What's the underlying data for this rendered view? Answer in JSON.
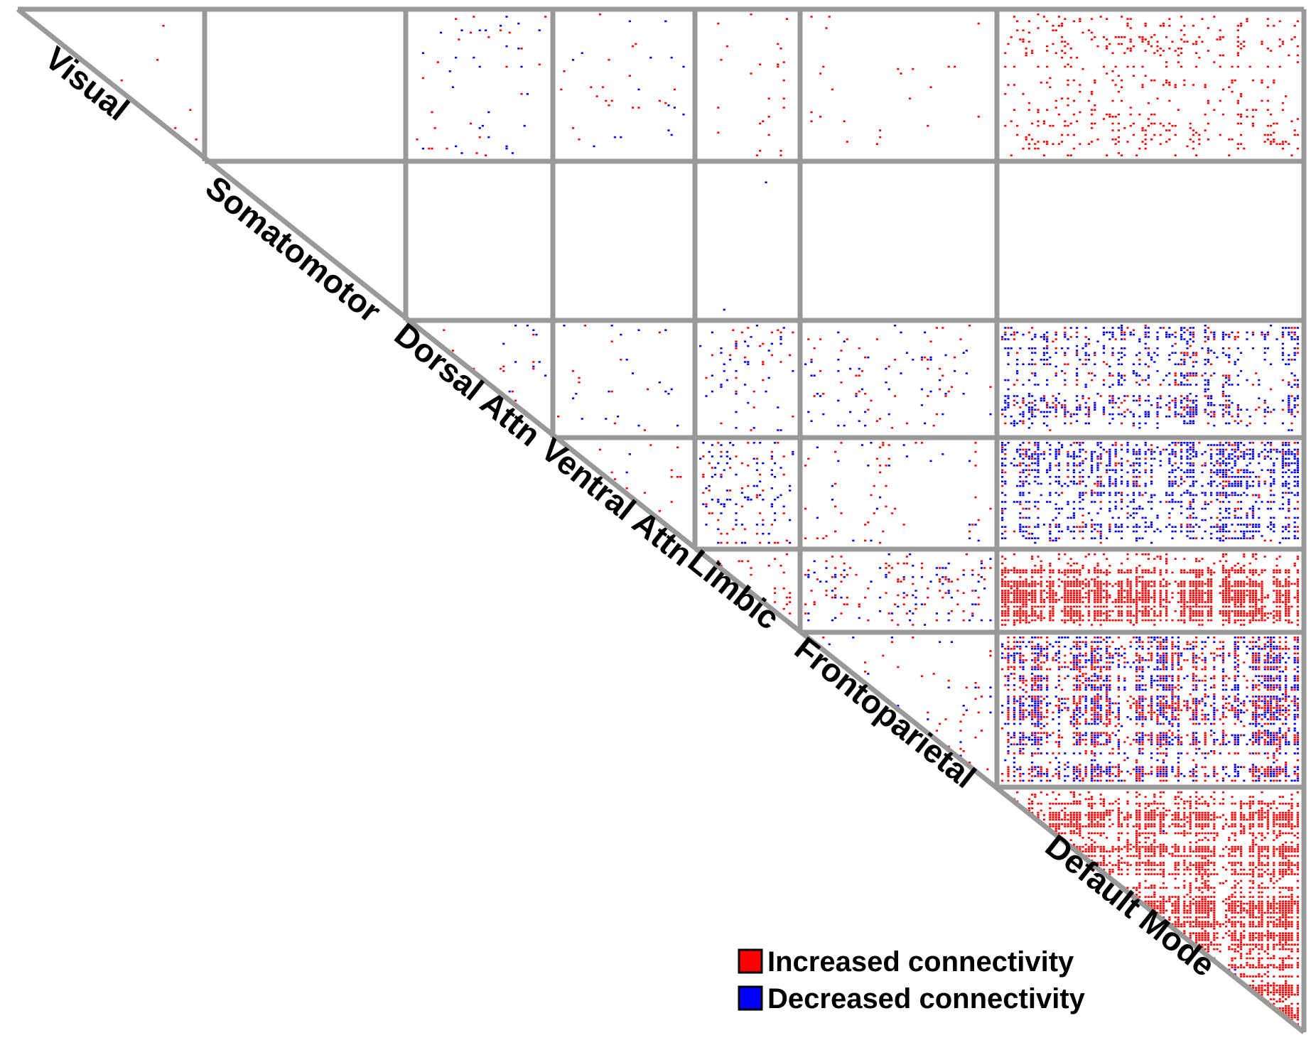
{
  "chart_data": {
    "type": "heatmap",
    "title": "",
    "xlabel": "",
    "ylabel": "",
    "networks": [
      {
        "label": "Visual"
      },
      {
        "label": "Somatomotor"
      },
      {
        "label": "Dorsal Attn"
      },
      {
        "label": "Ventral Attn"
      },
      {
        "label": "Limbic"
      },
      {
        "label": "Frontoparietal"
      },
      {
        "label": "Default Mode"
      }
    ],
    "legend": [
      {
        "label": "Increased connectivity",
        "color": "#ff0000"
      },
      {
        "label": "Decreased connectivity",
        "color": "#0000ff"
      }
    ],
    "blocks": [
      {
        "row": 0,
        "col": 0,
        "increased": 0.002,
        "decreased": 0.0
      },
      {
        "row": 0,
        "col": 1,
        "increased": 0.0,
        "decreased": 0.0
      },
      {
        "row": 0,
        "col": 2,
        "increased": 0.006,
        "decreased": 0.006
      },
      {
        "row": 0,
        "col": 3,
        "increased": 0.004,
        "decreased": 0.004
      },
      {
        "row": 0,
        "col": 4,
        "increased": 0.01,
        "decreased": 0.0
      },
      {
        "row": 0,
        "col": 5,
        "increased": 0.008,
        "decreased": 0.0
      },
      {
        "row": 0,
        "col": 6,
        "increased": 0.06,
        "decreased": 0.0
      },
      {
        "row": 1,
        "col": 1,
        "increased": 0.0,
        "decreased": 0.0
      },
      {
        "row": 1,
        "col": 2,
        "increased": 0.0,
        "decreased": 0.0
      },
      {
        "row": 1,
        "col": 3,
        "increased": 0.0,
        "decreased": 0.0
      },
      {
        "row": 1,
        "col": 4,
        "increased": 0.0,
        "decreased": 0.001
      },
      {
        "row": 1,
        "col": 5,
        "increased": 0.0,
        "decreased": 0.0
      },
      {
        "row": 1,
        "col": 6,
        "increased": 0.0,
        "decreased": 0.0
      },
      {
        "row": 2,
        "col": 2,
        "increased": 0.01,
        "decreased": 0.01
      },
      {
        "row": 2,
        "col": 3,
        "increased": 0.005,
        "decreased": 0.008
      },
      {
        "row": 2,
        "col": 4,
        "increased": 0.015,
        "decreased": 0.02
      },
      {
        "row": 2,
        "col": 5,
        "increased": 0.012,
        "decreased": 0.015
      },
      {
        "row": 2,
        "col": 6,
        "increased": 0.05,
        "decreased": 0.12
      },
      {
        "row": 3,
        "col": 3,
        "increased": 0.01,
        "decreased": 0.005
      },
      {
        "row": 3,
        "col": 4,
        "increased": 0.02,
        "decreased": 0.06
      },
      {
        "row": 3,
        "col": 5,
        "increased": 0.012,
        "decreased": 0.006
      },
      {
        "row": 3,
        "col": 6,
        "increased": 0.04,
        "decreased": 0.2
      },
      {
        "row": 4,
        "col": 4,
        "increased": 0.06,
        "decreased": 0.0
      },
      {
        "row": 4,
        "col": 5,
        "increased": 0.05,
        "decreased": 0.04
      },
      {
        "row": 4,
        "col": 6,
        "increased": 0.4,
        "decreased": 0.0
      },
      {
        "row": 5,
        "col": 5,
        "increased": 0.02,
        "decreased": 0.01
      },
      {
        "row": 5,
        "col": 6,
        "increased": 0.15,
        "decreased": 0.15
      },
      {
        "row": 6,
        "col": 6,
        "increased": 0.5,
        "decreased": 0.005
      }
    ]
  }
}
